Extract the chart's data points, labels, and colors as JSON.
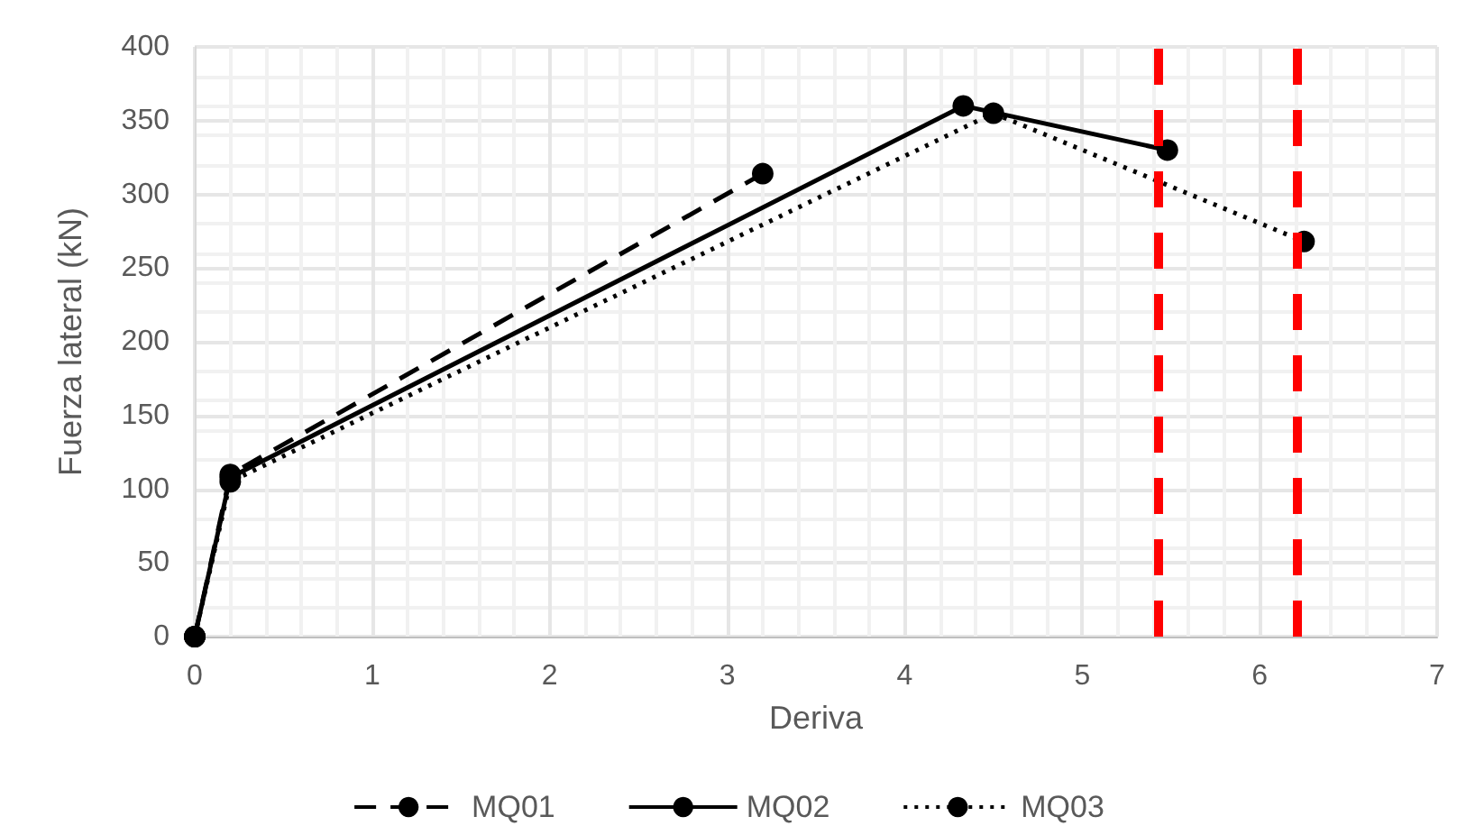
{
  "chart_data": {
    "type": "line",
    "xlabel": "Deriva",
    "ylabel": "Fuerza lateral (kN)",
    "xlim": [
      0,
      7
    ],
    "xticks": [
      0,
      1,
      2,
      3,
      4,
      5,
      6,
      7
    ],
    "ylim": [
      0,
      400
    ],
    "yticks": [
      0,
      50,
      100,
      150,
      200,
      250,
      300,
      350,
      400
    ],
    "grid": true,
    "legend": "bottom",
    "marker": "circle",
    "series": [
      {
        "name": "MQ01",
        "color": "#000000",
        "line_style": "dashed",
        "x": [
          0,
          0.2,
          3.2
        ],
        "values": [
          0,
          110,
          314
        ]
      },
      {
        "name": "MQ02",
        "color": "#000000",
        "line_style": "solid",
        "x": [
          0,
          0.2,
          4.33,
          5.48
        ],
        "values": [
          0,
          108,
          360,
          330
        ]
      },
      {
        "name": "MQ03",
        "color": "#000000",
        "line_style": "dotted",
        "x": [
          0,
          0.2,
          4.5,
          6.25
        ],
        "values": [
          0,
          105,
          355,
          268
        ]
      }
    ],
    "ref_lines": [
      {
        "axis": "x",
        "value": 5.43,
        "color": "#ff0000",
        "line_style": "dashed"
      },
      {
        "axis": "x",
        "value": 6.21,
        "color": "#ff0000",
        "line_style": "dashed"
      }
    ]
  }
}
